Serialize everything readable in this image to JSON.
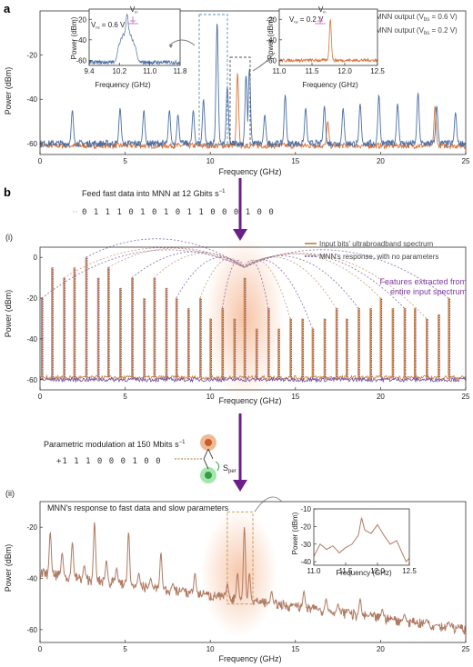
{
  "panel_a": {
    "letter": "a",
    "xlabel": "Frequency (GHz)",
    "ylabel": "Power (dBm)",
    "xticks": [
      "0",
      "5",
      "10",
      "15",
      "20",
      "25"
    ],
    "yticks": [
      "-20",
      "-40",
      "-60"
    ],
    "legend": [
      {
        "label": "MNN output (V",
        "sub": "bs",
        "rest": " = 0.6 V)",
        "color": "#4a6fa5"
      },
      {
        "label": "MNN output (V",
        "sub": "bs",
        "rest": " = 0.2 V)",
        "color": "#d9733a"
      }
    ],
    "inset1": {
      "xlabel": "Frequency (GHz)",
      "ylabel": "Power (dBm)",
      "xticks": [
        "9.4",
        "10.2",
        "11.0",
        "11.8"
      ],
      "yticks": [
        "-20",
        "-40",
        "-60"
      ],
      "vbs_label": "V",
      "vbs_sub": "bs",
      "vbs_value": " = 0.6 V",
      "vin_label": "V",
      "vin_sub": "in"
    },
    "inset2": {
      "xlabel": "Frequency (GHz)",
      "ylabel": "Power (dBm)",
      "xticks": [
        "11.0",
        "11.5",
        "12.0",
        "12.5"
      ],
      "yticks": [
        "-20",
        "-40",
        "-60"
      ],
      "vbs_label": "V",
      "vbs_sub": "bs",
      "vbs_value": " = 0.2 V",
      "vin_label": "V",
      "vin_sub": "in"
    }
  },
  "panel_b": {
    "letter": "b",
    "feed_text": "Feed fast data into MNN at 12 Gbits s",
    "feed_sup": "−1",
    "bits": "0 1 1 1 0 1 0 1 0 1 1 0 0 0 1 0 0",
    "sub_i": {
      "label": "(i)",
      "xlabel": "Frequency (GHz)",
      "ylabel": "Power (dBm)",
      "xticks": [
        "0",
        "5",
        "10",
        "15",
        "20",
        "25"
      ],
      "yticks": [
        "0",
        "-20",
        "-40",
        "-60"
      ],
      "legend": [
        {
          "label": "Input bits' ultrabroadband spectrum",
          "color": "#c87a3c"
        },
        {
          "label": "MNN's response, with no parameters",
          "color": "#6a4a9a"
        }
      ],
      "features_line1": "Features extracted from",
      "features_line2": "entire input spectrum"
    },
    "param_text": "Parametric modulation at 150 Mbits s",
    "param_sup": "−1",
    "param_bits": "+1 1 1 0 0 0 1 0 0",
    "sper_label": "S",
    "sper_sub": "per",
    "sub_ii": {
      "label": "(ii)",
      "title": "MNN's response to fast data and slow parameters",
      "xlabel": "Frequency (GHz)",
      "ylabel": "Power (dBm)",
      "xticks": [
        "0",
        "5",
        "10",
        "15",
        "20",
        "25"
      ],
      "yticks": [
        "-20",
        "-40",
        "-60"
      ],
      "inset": {
        "xlabel": "Frequency (GHz)",
        "ylabel": "Power (dBm)",
        "xticks": [
          "11.0",
          "11.5",
          "12.0",
          "12.5"
        ],
        "yticks": [
          "-10",
          "-20",
          "-30",
          "-40"
        ]
      }
    }
  },
  "colors": {
    "blue": "#4a6fa5",
    "orange": "#d9733a",
    "purple": "#6a4a9a",
    "brown": "#b07a62",
    "arrow": "#6b1f8a",
    "glow": "#f3b088"
  },
  "chart_data": [
    {
      "type": "line",
      "xlabel": "Frequency (GHz)",
      "ylabel": "Power (dBm)",
      "xlim": [
        0,
        25
      ],
      "ylim": [
        -65,
        0
      ],
      "series": [
        {
          "name": "MNN output (Vbs = 0.6 V)",
          "peaks": [
            [
              1.9,
              -45
            ],
            [
              4.7,
              -44
            ],
            [
              6.1,
              -45
            ],
            [
              7.6,
              -45
            ],
            [
              8.1,
              -47
            ],
            [
              9.0,
              -45
            ],
            [
              9.6,
              -40
            ],
            [
              10.4,
              -5
            ],
            [
              11.0,
              -34
            ],
            [
              12.1,
              -29
            ],
            [
              12.3,
              -26
            ],
            [
              13.2,
              -47
            ],
            [
              14.4,
              -38
            ],
            [
              15.6,
              -44
            ],
            [
              16.7,
              -43
            ],
            [
              17.8,
              -44
            ],
            [
              18.8,
              -42
            ],
            [
              19.9,
              -38
            ],
            [
              21.0,
              -42
            ],
            [
              22.2,
              -37
            ],
            [
              23.3,
              -43
            ],
            [
              24.4,
              -46
            ]
          ],
          "floor": -60
        },
        {
          "name": "MNN output (Vbs = 0.2 V)",
          "peaks": [
            [
              11.6,
              -28
            ],
            [
              16.9,
              -50
            ],
            [
              23.2,
              -43
            ]
          ],
          "floor": -61
        }
      ]
    },
    {
      "type": "line",
      "xlabel": "Frequency (GHz)",
      "ylabel": "Power (dBm)",
      "xlim": [
        9.4,
        11.8
      ],
      "ylim": [
        -65,
        -10
      ],
      "series": [
        {
          "name": "MNN output (Vbs = 0.6 V)",
          "peaks": [
            [
              10.2,
              -44
            ],
            [
              10.25,
              -38
            ],
            [
              10.3,
              -34
            ],
            [
              10.35,
              -32
            ],
            [
              10.4,
              -15
            ],
            [
              10.45,
              -30
            ],
            [
              10.5,
              -35
            ],
            [
              10.55,
              -40
            ],
            [
              10.6,
              -45
            ]
          ],
          "floor": -62
        }
      ]
    },
    {
      "type": "line",
      "xlabel": "Frequency (GHz)",
      "ylabel": "Power (dBm)",
      "xlim": [
        11.0,
        12.5
      ],
      "ylim": [
        -65,
        -10
      ],
      "series": [
        {
          "name": "MNN output (Vbs = 0.2 V)",
          "peaks": [
            [
              11.78,
              -20
            ]
          ],
          "floor": -60
        }
      ]
    },
    {
      "type": "line",
      "xlabel": "Frequency (GHz)",
      "ylabel": "Power (dBm)",
      "xlim": [
        0,
        25
      ],
      "ylim": [
        -65,
        5
      ],
      "series": [
        {
          "name": "Input bits' ultrabroadband spectrum",
          "peaks": [
            [
              0.1,
              -20
            ],
            [
              0.7,
              -5
            ],
            [
              1.4,
              -10
            ],
            [
              2.0,
              -5
            ],
            [
              2.7,
              0
            ],
            [
              3.4,
              -10
            ],
            [
              4.0,
              -5
            ],
            [
              4.7,
              -15
            ],
            [
              5.4,
              -10
            ],
            [
              6.1,
              -20
            ],
            [
              6.7,
              -10
            ],
            [
              7.4,
              -15
            ],
            [
              8.0,
              -20
            ],
            [
              8.7,
              -25
            ],
            [
              9.4,
              -20
            ],
            [
              10.0,
              -30
            ],
            [
              10.7,
              -25
            ],
            [
              11.4,
              -30
            ],
            [
              12.0,
              -10
            ],
            [
              12.7,
              -35
            ],
            [
              13.4,
              -25
            ],
            [
              14.0,
              -35
            ],
            [
              14.7,
              -30
            ],
            [
              15.4,
              -30
            ],
            [
              16.0,
              -35
            ],
            [
              16.7,
              -30
            ],
            [
              17.4,
              -25
            ],
            [
              18.0,
              -30
            ],
            [
              18.7,
              -25
            ],
            [
              19.4,
              -25
            ],
            [
              20.0,
              -20
            ],
            [
              20.7,
              -25
            ],
            [
              21.4,
              -25
            ],
            [
              22.0,
              -25
            ],
            [
              22.7,
              -30
            ],
            [
              23.4,
              -28
            ],
            [
              24.0,
              -20
            ]
          ],
          "floor": -59
        },
        {
          "name": "MNN's response, with no parameters",
          "peaks": [
            [
              0.1,
              -20
            ],
            [
              0.7,
              -5
            ],
            [
              1.4,
              -10
            ],
            [
              2.0,
              -5
            ],
            [
              2.7,
              0
            ],
            [
              3.4,
              -10
            ],
            [
              4.0,
              -5
            ],
            [
              4.7,
              -15
            ],
            [
              5.4,
              -10
            ],
            [
              6.1,
              -20
            ],
            [
              6.7,
              -10
            ],
            [
              7.4,
              -15
            ],
            [
              8.0,
              -20
            ],
            [
              8.7,
              -25
            ],
            [
              9.4,
              -20
            ],
            [
              10.0,
              -30
            ],
            [
              10.7,
              -25
            ],
            [
              11.4,
              -30
            ],
            [
              12.0,
              -10
            ],
            [
              12.7,
              -35
            ],
            [
              13.4,
              -25
            ],
            [
              14.0,
              -35
            ],
            [
              14.7,
              -30
            ],
            [
              15.4,
              -30
            ],
            [
              16.0,
              -35
            ],
            [
              16.7,
              -30
            ],
            [
              17.4,
              -25
            ],
            [
              18.0,
              -30
            ],
            [
              18.7,
              -25
            ],
            [
              19.4,
              -25
            ],
            [
              20.0,
              -20
            ],
            [
              20.7,
              -25
            ],
            [
              21.4,
              -25
            ],
            [
              22.0,
              -25
            ],
            [
              22.7,
              -30
            ],
            [
              23.4,
              -28
            ],
            [
              24.0,
              -20
            ]
          ],
          "floor": -60
        }
      ]
    },
    {
      "type": "line",
      "title": "MNN's response to fast data and slow parameters",
      "xlabel": "Frequency (GHz)",
      "ylabel": "Power (dBm)",
      "xlim": [
        0,
        25
      ],
      "ylim": [
        -65,
        -10
      ],
      "series": [
        {
          "name": "",
          "peaks": [
            [
              0.6,
              -22
            ],
            [
              1.3,
              -30
            ],
            [
              1.9,
              -26
            ],
            [
              2.6,
              -35
            ],
            [
              3.2,
              -18
            ],
            [
              3.9,
              -33
            ],
            [
              4.5,
              -36
            ],
            [
              5.2,
              -22
            ],
            [
              5.8,
              -38
            ],
            [
              6.5,
              -40
            ],
            [
              7.1,
              -30
            ],
            [
              7.8,
              -42
            ],
            [
              8.4,
              -44
            ],
            [
              9.1,
              -38
            ],
            [
              9.7,
              -46
            ],
            [
              10.4,
              -48
            ],
            [
              11.0,
              -42
            ],
            [
              11.6,
              -38
            ],
            [
              12.0,
              -20
            ],
            [
              12.3,
              -38
            ],
            [
              12.9,
              -50
            ],
            [
              13.6,
              -45
            ],
            [
              14.2,
              -52
            ],
            [
              14.9,
              -50
            ],
            [
              15.5,
              -45
            ],
            [
              16.2,
              -52
            ],
            [
              16.8,
              -48
            ],
            [
              17.5,
              -50
            ],
            [
              18.1,
              -52
            ],
            [
              18.8,
              -48
            ],
            [
              19.4,
              -54
            ],
            [
              20.1,
              -52
            ],
            [
              20.7,
              -56
            ],
            [
              21.4,
              -54
            ],
            [
              22.0,
              -58
            ],
            [
              22.7,
              -56
            ],
            [
              23.3,
              -58
            ],
            [
              24.0,
              -57
            ],
            [
              24.6,
              -59
            ]
          ],
          "baseline_start": -38,
          "baseline_end": -60
        }
      ]
    },
    {
      "type": "line",
      "xlabel": "Frequency (GHz)",
      "ylabel": "Power (dBm)",
      "xlim": [
        11.0,
        12.5
      ],
      "ylim": [
        -42,
        -10
      ],
      "series": [
        {
          "name": "",
          "points": [
            [
              11.0,
              -37
            ],
            [
              11.1,
              -30
            ],
            [
              11.2,
              -33
            ],
            [
              11.3,
              -31
            ],
            [
              11.4,
              -35
            ],
            [
              11.5,
              -32
            ],
            [
              11.6,
              -30
            ],
            [
              11.7,
              -25
            ],
            [
              11.75,
              -15
            ],
            [
              11.8,
              -22
            ],
            [
              11.9,
              -24
            ],
            [
              12.0,
              -19
            ],
            [
              12.1,
              -25
            ],
            [
              12.2,
              -30
            ],
            [
              12.3,
              -28
            ],
            [
              12.4,
              -36
            ],
            [
              12.45,
              -40
            ],
            [
              12.5,
              -38
            ]
          ]
        }
      ]
    }
  ]
}
